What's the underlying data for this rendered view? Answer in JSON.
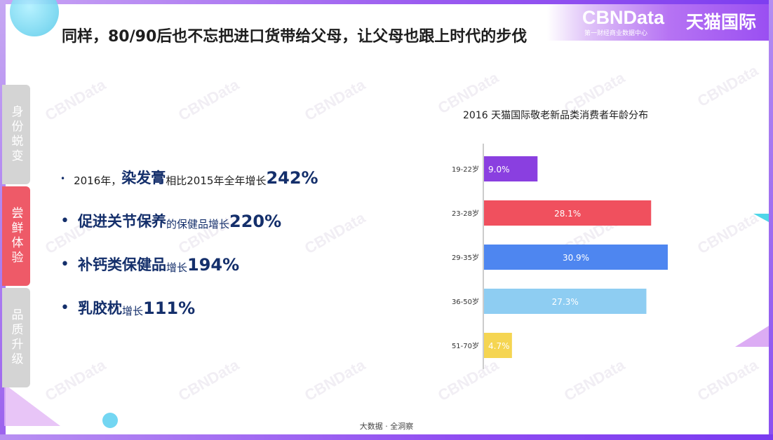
{
  "brand": {
    "logo": "CBNData",
    "logo_subtitle": "第一财经商业数据中心",
    "partner": "天猫国际",
    "watermark": "CBNData"
  },
  "title": "同样，80/90后也不忘把进口货带给父母，让父母也跟上时代的步伐",
  "side_tabs": [
    {
      "label": "身份蜕变",
      "active": false
    },
    {
      "label": "尝鲜体验",
      "active": true
    },
    {
      "label": "品质升级",
      "active": false
    }
  ],
  "bullets": [
    {
      "prefix": "2016年，",
      "highlight": "染发膏",
      "middle": "相比2015年全年增长",
      "value": "242%"
    },
    {
      "highlight": "促进关节保养",
      "middle": "的保健品增长",
      "value": "220%"
    },
    {
      "highlight": "补钙类保健品",
      "middle": "增长",
      "value": "194%"
    },
    {
      "highlight": "乳胶枕",
      "middle": "增长",
      "value": "111%"
    }
  ],
  "chart_data": {
    "type": "bar",
    "orientation": "horizontal",
    "title": "2016 天猫国际敬老新品类消费者年龄分布",
    "categories": [
      "19-22岁",
      "23-28岁",
      "29-35岁",
      "36-50岁",
      "51-70岁"
    ],
    "values": [
      9.0,
      28.1,
      30.9,
      27.3,
      4.7
    ],
    "labels": [
      "9.0%",
      "28.1%",
      "30.9%",
      "27.3%",
      "4.7%"
    ],
    "colors": [
      "#8a3fe0",
      "#f0505e",
      "#4e86f0",
      "#8ecdf2",
      "#f5d552"
    ],
    "xlim": [
      0,
      30.9
    ],
    "xlabel": "",
    "ylabel": ""
  },
  "footer": "大数据 · 全洞察"
}
